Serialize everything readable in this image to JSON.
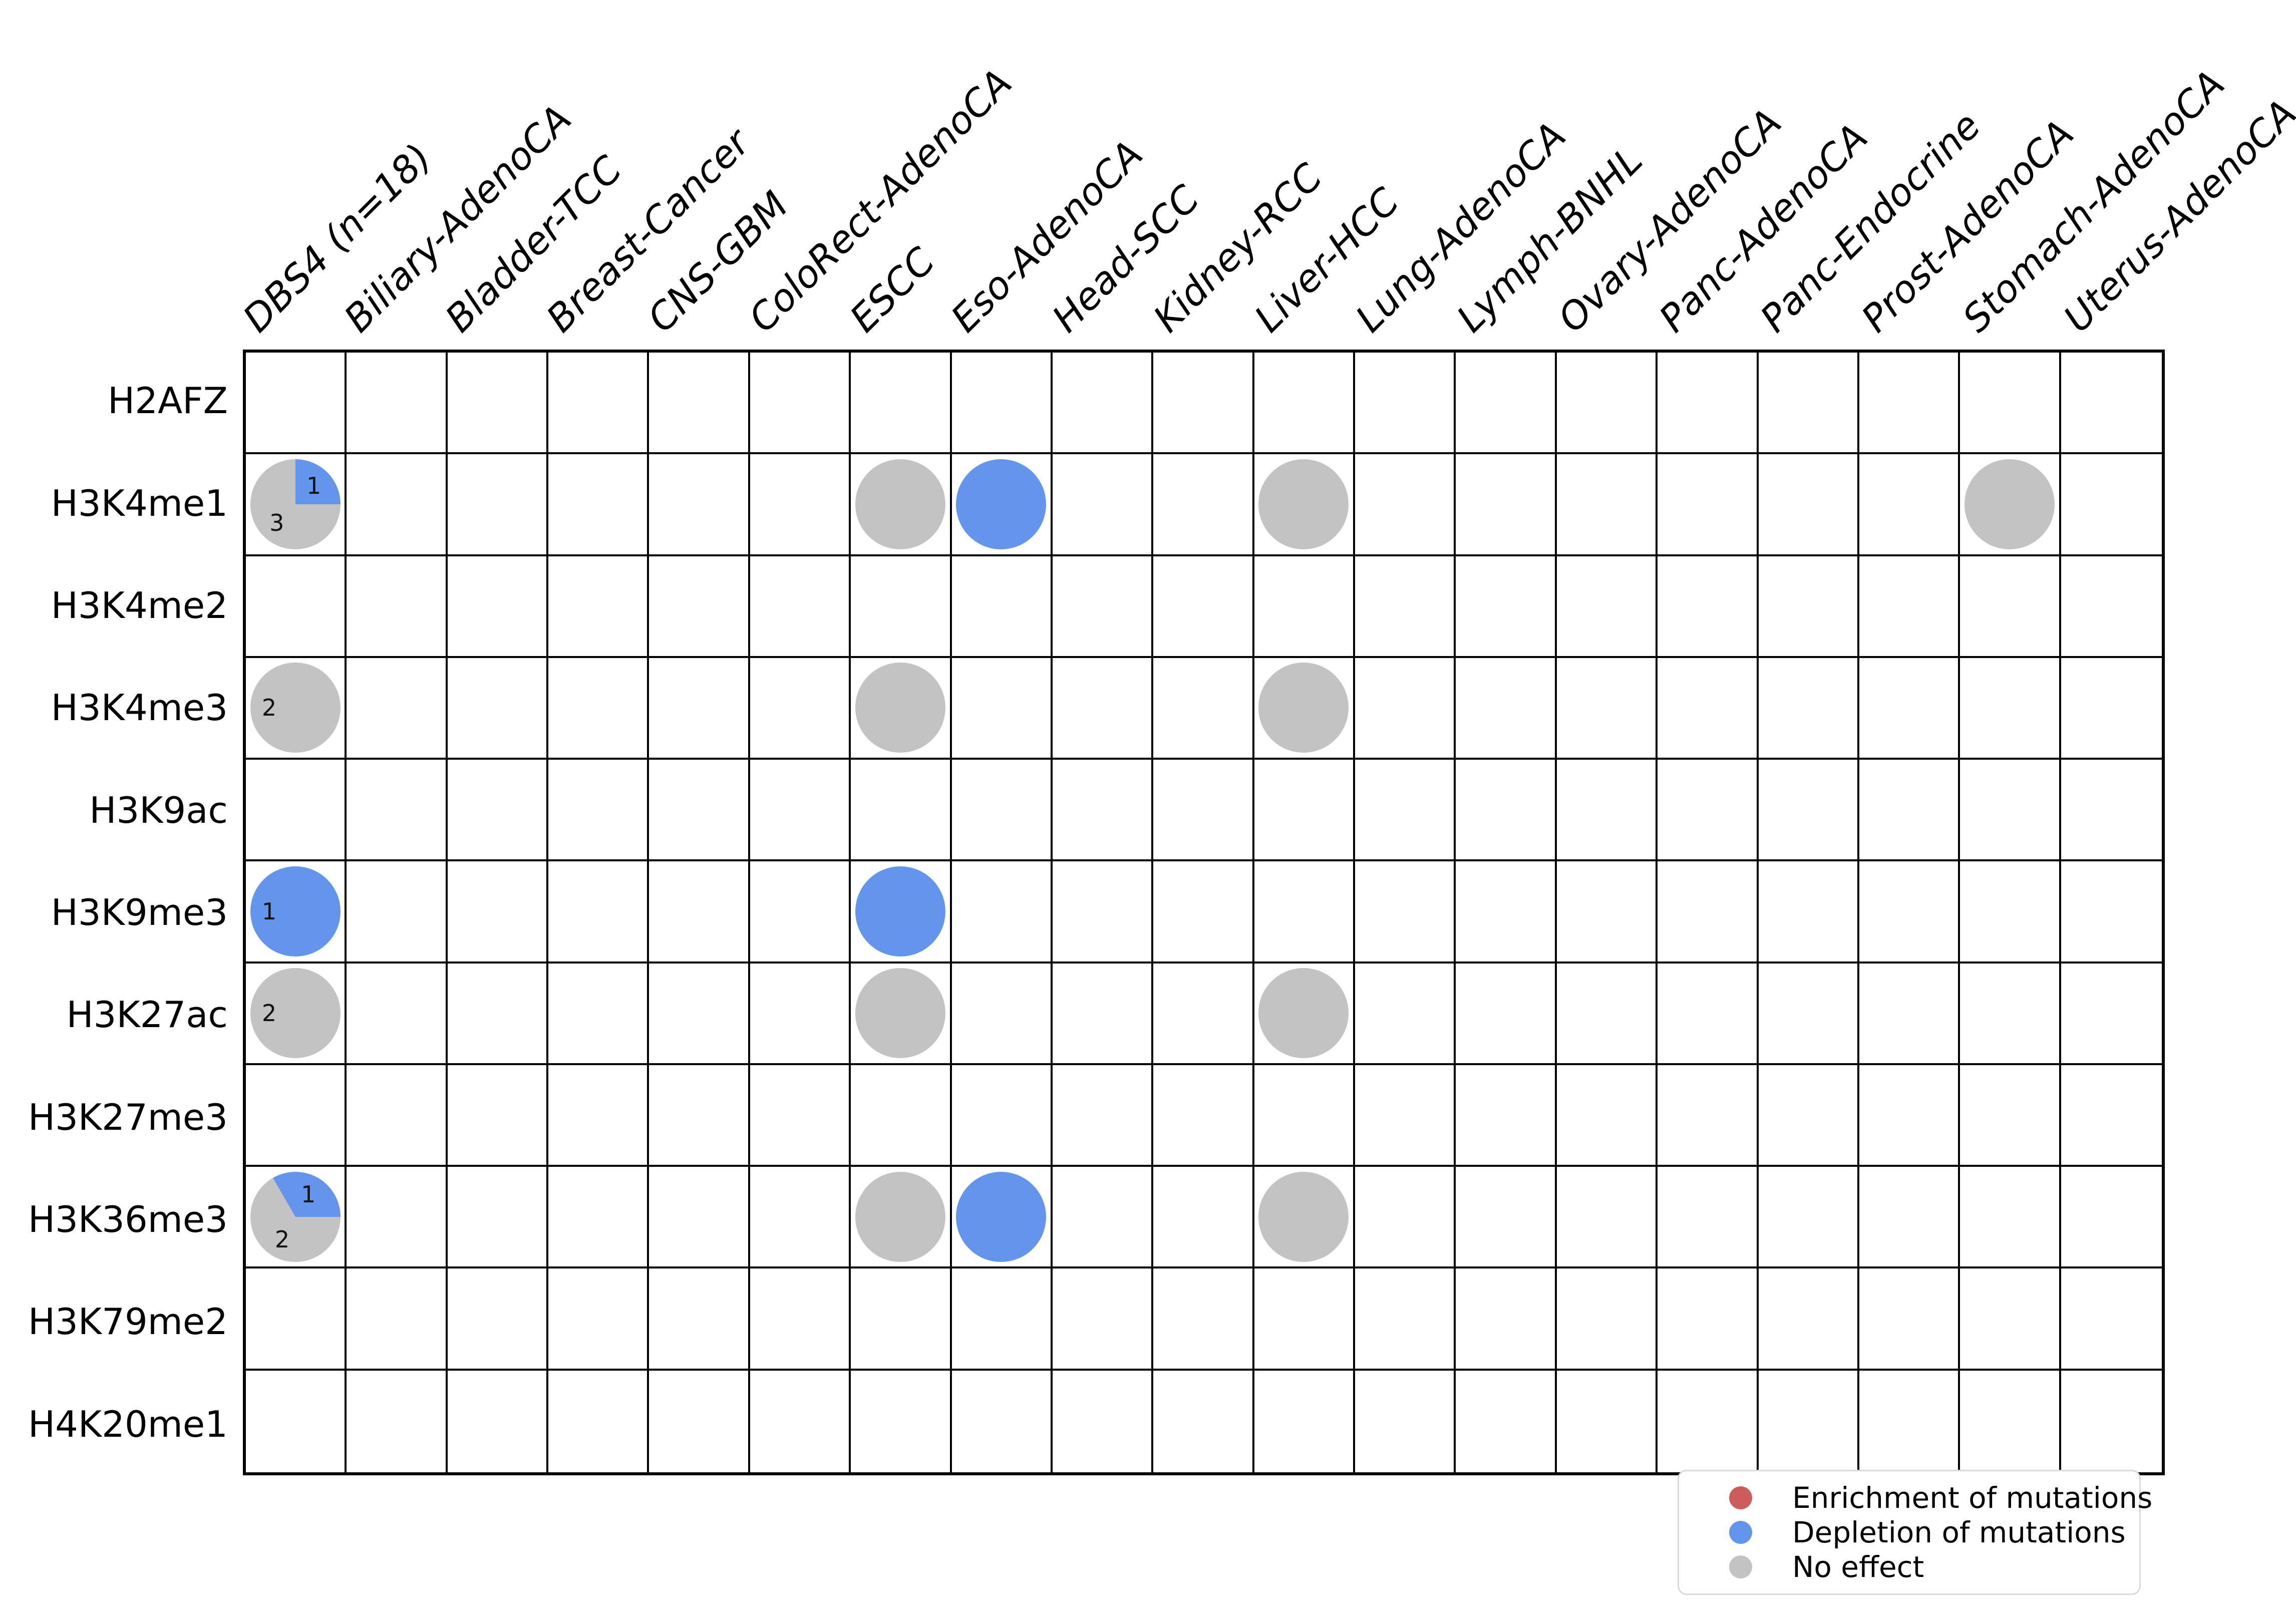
{
  "chart_data": {
    "type": "heatmap",
    "subtype": "pie-matrix",
    "grid": "19 columns x 11 rows, black gridlines, white background",
    "columns": [
      "DBS4 (n=18)",
      "Biliary-AdenoCA",
      "Bladder-TCC",
      "Breast-Cancer",
      "CNS-GBM",
      "ColoRect-AdenoCA",
      "ESCC",
      "Eso-AdenoCA",
      "Head-SCC",
      "Kidney-RCC",
      "Liver-HCC",
      "Lung-AdenoCA",
      "Lymph-BNHL",
      "Ovary-AdenoCA",
      "Panc-AdenoCA",
      "Panc-Endocrine",
      "Prost-AdenoCA",
      "Stomach-AdenoCA",
      "Uterus-AdenoCA"
    ],
    "rows": [
      "H2AFZ",
      "H3K4me1",
      "H3K4me2",
      "H3K4me3",
      "H3K9ac",
      "H3K9me3",
      "H3K27ac",
      "H3K27me3",
      "H3K36me3",
      "H3K79me2",
      "H4K20me1"
    ],
    "effects": {
      "enrichment": "#cd5c5c",
      "depletion": "#6495ed",
      "no_effect": "#c3c3c3"
    },
    "cells": [
      {
        "row": "H3K4me1",
        "col": "DBS4 (n=18)",
        "kind": "pie",
        "slices": [
          {
            "effect": "depletion",
            "count": 1
          },
          {
            "effect": "no_effect",
            "count": 3
          }
        ]
      },
      {
        "row": "H3K4me1",
        "col": "ESCC",
        "kind": "dot",
        "effect": "no_effect"
      },
      {
        "row": "H3K4me1",
        "col": "Eso-AdenoCA",
        "kind": "dot",
        "effect": "depletion"
      },
      {
        "row": "H3K4me1",
        "col": "Liver-HCC",
        "kind": "dot",
        "effect": "no_effect"
      },
      {
        "row": "H3K4me1",
        "col": "Stomach-AdenoCA",
        "kind": "dot",
        "effect": "no_effect"
      },
      {
        "row": "H3K4me3",
        "col": "DBS4 (n=18)",
        "kind": "pie",
        "slices": [
          {
            "effect": "no_effect",
            "count": 2
          }
        ]
      },
      {
        "row": "H3K4me3",
        "col": "ESCC",
        "kind": "dot",
        "effect": "no_effect"
      },
      {
        "row": "H3K4me3",
        "col": "Liver-HCC",
        "kind": "dot",
        "effect": "no_effect"
      },
      {
        "row": "H3K9me3",
        "col": "DBS4 (n=18)",
        "kind": "pie",
        "slices": [
          {
            "effect": "depletion",
            "count": 1
          }
        ]
      },
      {
        "row": "H3K9me3",
        "col": "ESCC",
        "kind": "dot",
        "effect": "depletion"
      },
      {
        "row": "H3K27ac",
        "col": "DBS4 (n=18)",
        "kind": "pie",
        "slices": [
          {
            "effect": "no_effect",
            "count": 2
          }
        ]
      },
      {
        "row": "H3K27ac",
        "col": "ESCC",
        "kind": "dot",
        "effect": "no_effect"
      },
      {
        "row": "H3K27ac",
        "col": "Liver-HCC",
        "kind": "dot",
        "effect": "no_effect"
      },
      {
        "row": "H3K36me3",
        "col": "DBS4 (n=18)",
        "kind": "pie",
        "slices": [
          {
            "effect": "depletion",
            "count": 1
          },
          {
            "effect": "no_effect",
            "count": 2
          }
        ]
      },
      {
        "row": "H3K36me3",
        "col": "ESCC",
        "kind": "dot",
        "effect": "no_effect"
      },
      {
        "row": "H3K36me3",
        "col": "Eso-AdenoCA",
        "kind": "dot",
        "effect": "depletion"
      },
      {
        "row": "H3K36me3",
        "col": "Liver-HCC",
        "kind": "dot",
        "effect": "no_effect"
      }
    ],
    "legend_position": "bottom-right",
    "legend": {
      "items": [
        {
          "effect": "enrichment",
          "label": "Enrichment of mutations"
        },
        {
          "effect": "depletion",
          "label": "Depletion of mutations"
        },
        {
          "effect": "no_effect",
          "label": "No effect"
        }
      ]
    }
  }
}
